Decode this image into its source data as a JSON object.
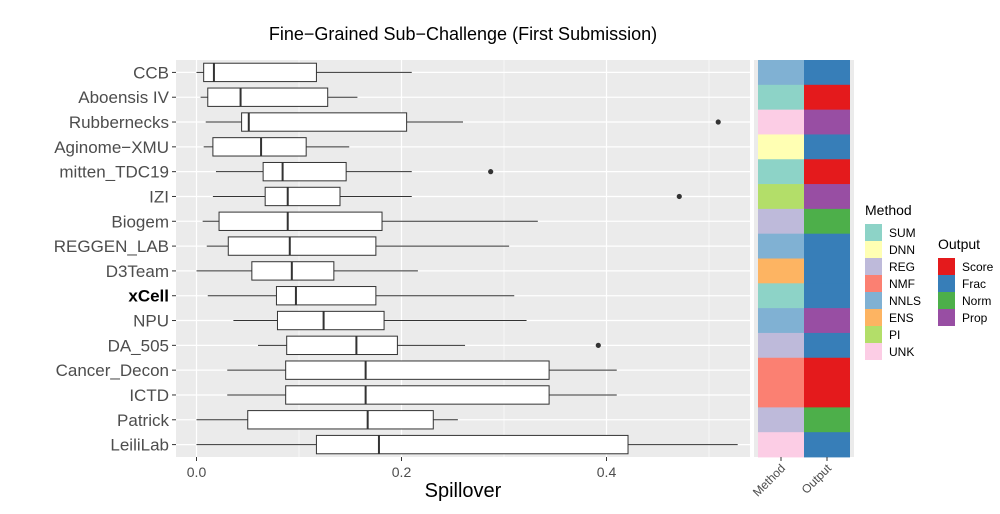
{
  "chart_data": {
    "type": "boxplot",
    "title": "Fine−Grained Sub−Challenge (First Submission)",
    "xlabel": "Spillover",
    "ylabel": "",
    "xlim": [
      -0.02,
      0.54
    ],
    "xticks": [
      0.0,
      0.2,
      0.4
    ],
    "xtick_labels": [
      "0.0",
      "0.2",
      "0.4"
    ],
    "grid": true,
    "legend_placement": "right",
    "teams": [
      {
        "name": "CCB",
        "bold": false,
        "whisker_min": 0.0,
        "q1": 0.007,
        "median": 0.017,
        "q3": 0.117,
        "whisker_max": 0.21,
        "outliers": [],
        "method": "NNLS",
        "output": "Frac"
      },
      {
        "name": "Aboensis IV",
        "bold": false,
        "whisker_min": 0.004,
        "q1": 0.011,
        "median": 0.043,
        "q3": 0.128,
        "whisker_max": 0.157,
        "outliers": [],
        "method": "SUM",
        "output": "Score"
      },
      {
        "name": "Rubbernecks",
        "bold": false,
        "whisker_min": 0.009,
        "q1": 0.044,
        "median": 0.051,
        "q3": 0.205,
        "whisker_max": 0.26,
        "outliers": [
          0.509
        ],
        "method": "UNK",
        "output": "Prop"
      },
      {
        "name": "Aginome−XMU",
        "bold": false,
        "whisker_min": 0.007,
        "q1": 0.016,
        "median": 0.063,
        "q3": 0.107,
        "whisker_max": 0.149,
        "outliers": [],
        "method": "DNN",
        "output": "Frac"
      },
      {
        "name": "mitten_TDC19",
        "bold": false,
        "whisker_min": 0.019,
        "q1": 0.065,
        "median": 0.084,
        "q3": 0.146,
        "whisker_max": 0.21,
        "outliers": [
          0.287
        ],
        "method": "SUM",
        "output": "Score"
      },
      {
        "name": "IZI",
        "bold": false,
        "whisker_min": 0.016,
        "q1": 0.067,
        "median": 0.089,
        "q3": 0.14,
        "whisker_max": 0.21,
        "outliers": [
          0.471
        ],
        "method": "PI",
        "output": "Prop"
      },
      {
        "name": "Biogem",
        "bold": false,
        "whisker_min": 0.006,
        "q1": 0.022,
        "median": 0.089,
        "q3": 0.181,
        "whisker_max": 0.333,
        "outliers": [],
        "method": "REG",
        "output": "Norm"
      },
      {
        "name": "REGGEN_LAB",
        "bold": false,
        "whisker_min": 0.01,
        "q1": 0.031,
        "median": 0.091,
        "q3": 0.175,
        "whisker_max": 0.305,
        "outliers": [],
        "method": "NNLS",
        "output": "Frac"
      },
      {
        "name": "D3Team",
        "bold": false,
        "whisker_min": 0.0,
        "q1": 0.054,
        "median": 0.093,
        "q3": 0.134,
        "whisker_max": 0.216,
        "outliers": [],
        "method": "ENS",
        "output": "Frac"
      },
      {
        "name": "xCell",
        "bold": true,
        "whisker_min": 0.011,
        "q1": 0.078,
        "median": 0.097,
        "q3": 0.175,
        "whisker_max": 0.31,
        "outliers": [],
        "method": "SUM",
        "output": "Frac"
      },
      {
        "name": "NPU",
        "bold": false,
        "whisker_min": 0.036,
        "q1": 0.079,
        "median": 0.124,
        "q3": 0.183,
        "whisker_max": 0.322,
        "outliers": [],
        "method": "NNLS",
        "output": "Prop"
      },
      {
        "name": "DA_505",
        "bold": false,
        "whisker_min": 0.06,
        "q1": 0.088,
        "median": 0.156,
        "q3": 0.196,
        "whisker_max": 0.262,
        "outliers": [
          0.392
        ],
        "method": "REG",
        "output": "Frac"
      },
      {
        "name": "Cancer_Decon",
        "bold": false,
        "whisker_min": 0.03,
        "q1": 0.087,
        "median": 0.165,
        "q3": 0.344,
        "whisker_max": 0.41,
        "outliers": [],
        "method": "NMF",
        "output": "Score"
      },
      {
        "name": "ICTD",
        "bold": false,
        "whisker_min": 0.03,
        "q1": 0.087,
        "median": 0.165,
        "q3": 0.344,
        "whisker_max": 0.41,
        "outliers": [],
        "method": "NMF",
        "output": "Score"
      },
      {
        "name": "Patrick",
        "bold": false,
        "whisker_min": 0.0,
        "q1": 0.05,
        "median": 0.167,
        "q3": 0.231,
        "whisker_max": 0.255,
        "outliers": [],
        "method": "REG",
        "output": "Norm"
      },
      {
        "name": "LeiliLab",
        "bold": false,
        "whisker_min": 0.0,
        "q1": 0.117,
        "median": 0.178,
        "q3": 0.421,
        "whisker_max": 0.528,
        "outliers": [],
        "method": "UNK",
        "output": "Frac"
      }
    ],
    "annotation_columns": [
      "Method",
      "Output"
    ],
    "method_legend": {
      "title": "Method",
      "entries": [
        {
          "label": "SUM",
          "color": "#8DD3C7"
        },
        {
          "label": "DNN",
          "color": "#FFFFB3"
        },
        {
          "label": "REG",
          "color": "#BEBADA"
        },
        {
          "label": "NMF",
          "color": "#FB8072"
        },
        {
          "label": "NNLS",
          "color": "#80B1D3"
        },
        {
          "label": "ENS",
          "color": "#FDB462"
        },
        {
          "label": "PI",
          "color": "#B3DE69"
        },
        {
          "label": "UNK",
          "color": "#FCCDE5"
        }
      ]
    },
    "output_legend": {
      "title": "Output",
      "entries": [
        {
          "label": "Score",
          "color": "#E41A1C"
        },
        {
          "label": "Frac",
          "color": "#377EB8"
        },
        {
          "label": "Norm",
          "color": "#4DAF4A"
        },
        {
          "label": "Prop",
          "color": "#984EA3"
        }
      ]
    },
    "colors": {
      "panel_background": "#EBEBEB",
      "grid": "#FFFFFF",
      "box_fill": "#FFFFFF",
      "line": "#333333",
      "axis_text": "#4D4D4D"
    }
  }
}
